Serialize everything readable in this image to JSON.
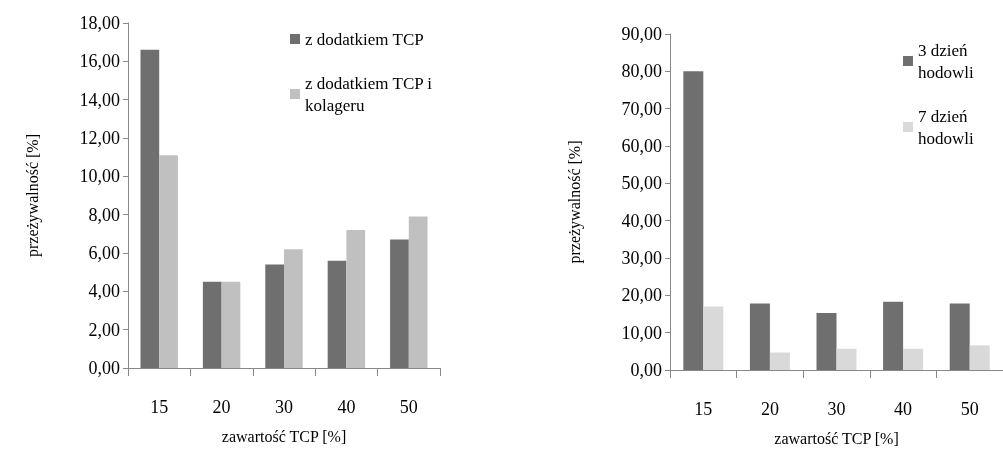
{
  "chart_data": [
    {
      "type": "bar",
      "categories": [
        "15",
        "20",
        "30",
        "40",
        "50"
      ],
      "xlabel": "zawartość TCP [%]",
      "ylabel": "przeżywalność [%]",
      "ylim": [
        0,
        18
      ],
      "yticks": [
        {
          "value": 0,
          "label": "0,00"
        },
        {
          "value": 2,
          "label": "2,00"
        },
        {
          "value": 4,
          "label": "4,00"
        },
        {
          "value": 6,
          "label": "6,00"
        },
        {
          "value": 8,
          "label": "8,00"
        },
        {
          "value": 10,
          "label": "10,00"
        },
        {
          "value": 12,
          "label": "12,00"
        },
        {
          "value": 14,
          "label": "14,00"
        },
        {
          "value": 16,
          "label": "16,00"
        },
        {
          "value": 18,
          "label": "18,00"
        }
      ],
      "series": [
        {
          "name": "z dodatkiem TCP",
          "color": "#6f6f6f",
          "values": [
            16.6,
            4.5,
            5.4,
            5.6,
            6.7
          ]
        },
        {
          "name": "z dodatkiem TCP i kolageru",
          "color": "#c0c0c0",
          "values": [
            11.1,
            4.5,
            6.2,
            7.2,
            7.9
          ]
        }
      ],
      "legend": "top right",
      "grid": false
    },
    {
      "type": "bar",
      "categories": [
        "15",
        "20",
        "30",
        "40",
        "50"
      ],
      "xlabel": "zawartość TCP [%]",
      "ylabel": "przeżywalność [%]",
      "ylim": [
        0,
        90
      ],
      "yticks": [
        {
          "value": 0,
          "label": "0,00"
        },
        {
          "value": 10,
          "label": "10,00"
        },
        {
          "value": 20,
          "label": "20,00"
        },
        {
          "value": 30,
          "label": "30,00"
        },
        {
          "value": 40,
          "label": "40,00"
        },
        {
          "value": 50,
          "label": "50,00"
        },
        {
          "value": 60,
          "label": "60,00"
        },
        {
          "value": 70,
          "label": "70,00"
        },
        {
          "value": 80,
          "label": "80,00"
        },
        {
          "value": 90,
          "label": "90,00"
        }
      ],
      "series": [
        {
          "name": "3 dzień hodowli",
          "color": "#6f6f6f",
          "values": [
            80,
            17.8,
            15.3,
            18.3,
            17.8
          ]
        },
        {
          "name": "7 dzień hodowli",
          "color": "#d9d9d9",
          "values": [
            17,
            4.7,
            5.7,
            5.7,
            6.6
          ]
        }
      ],
      "legend": "top right",
      "grid": false
    }
  ]
}
